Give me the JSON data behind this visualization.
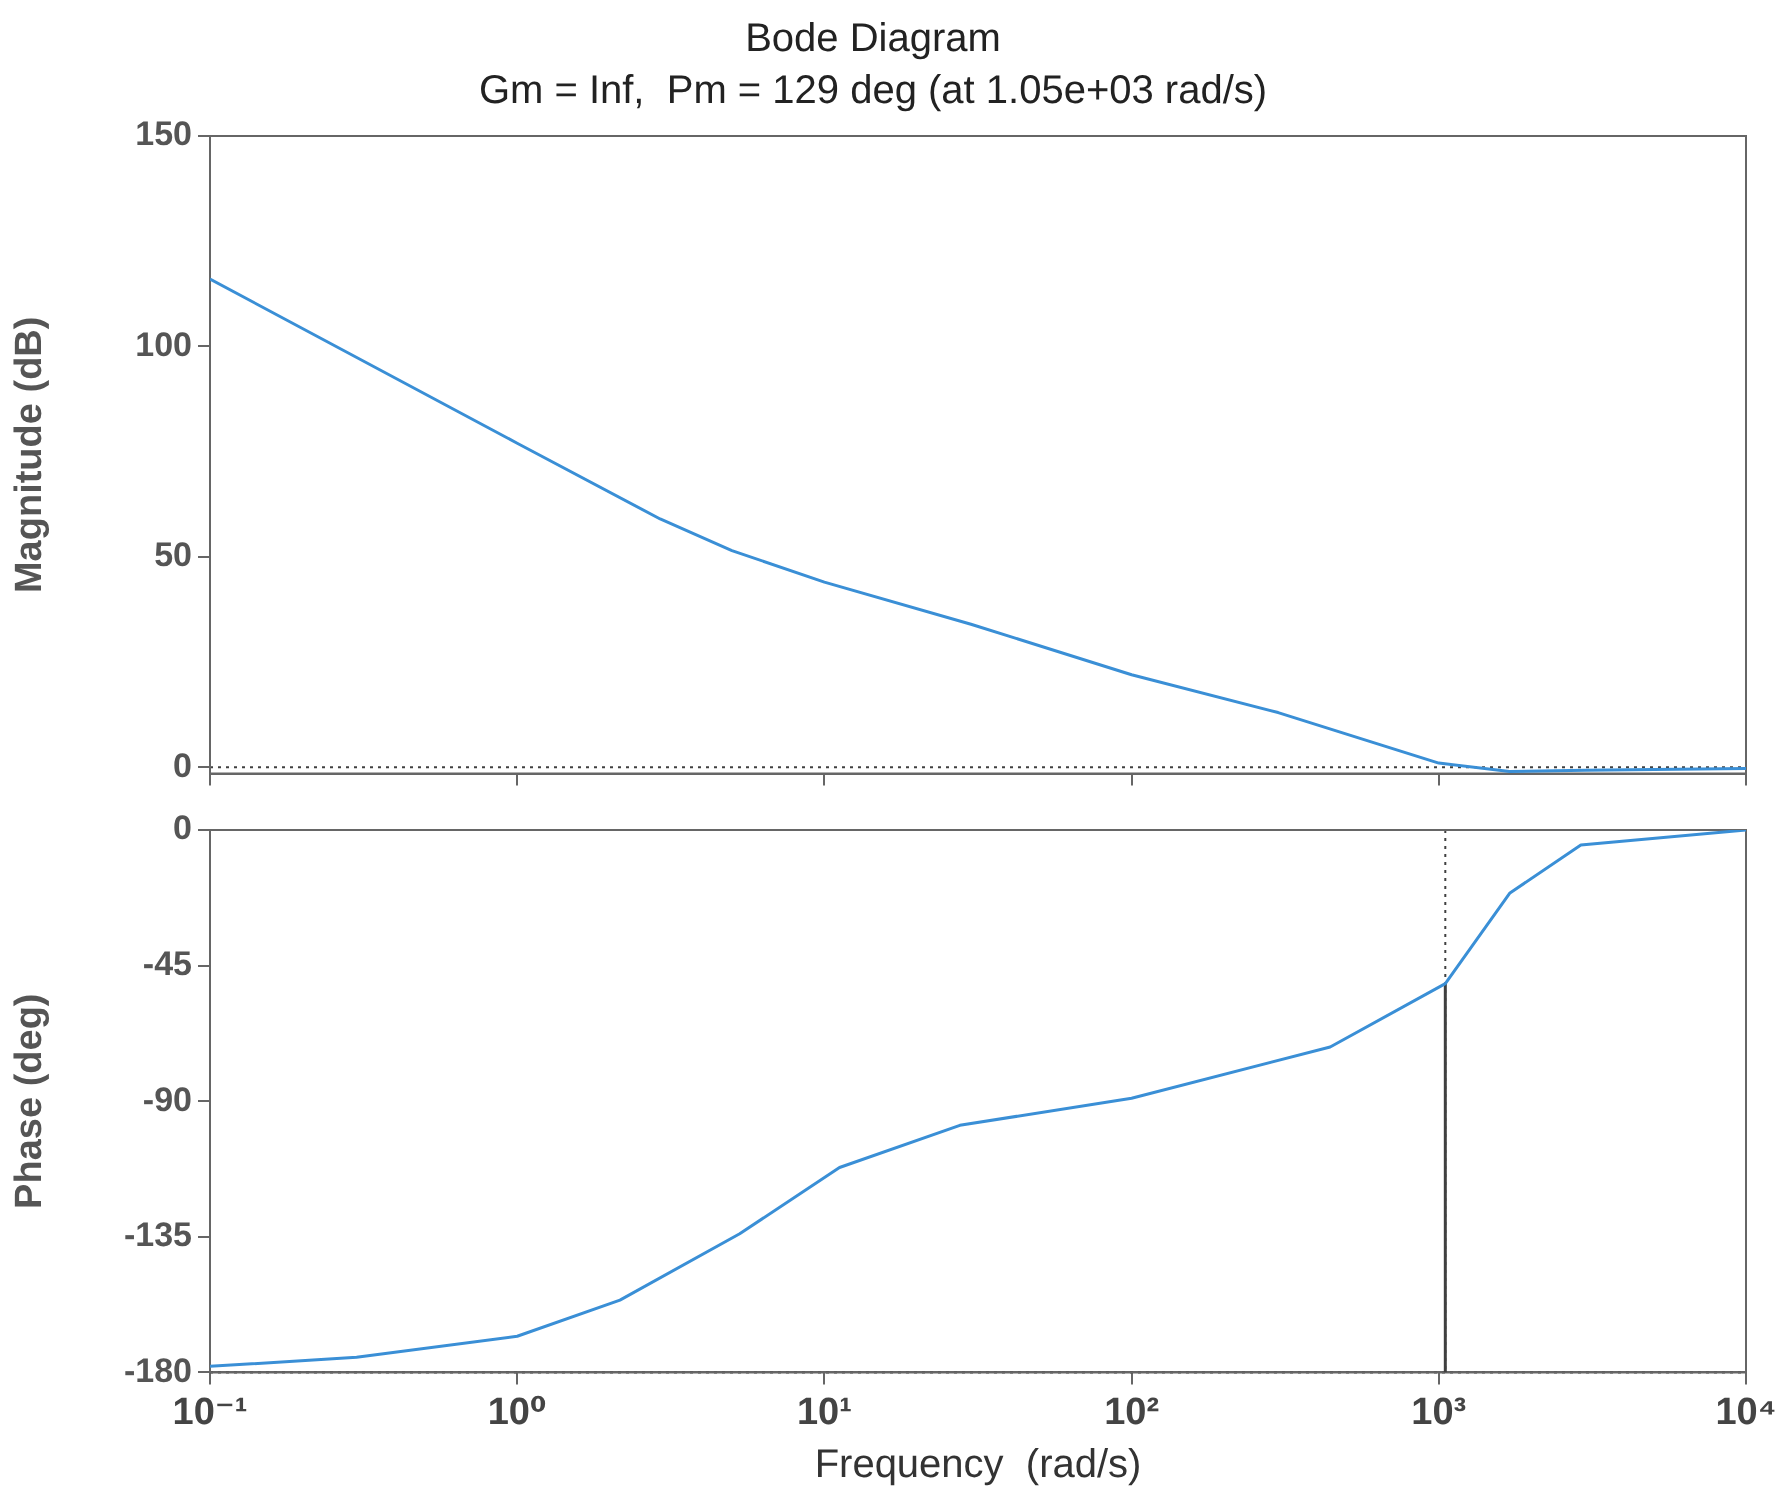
{
  "chart_data": [
    {
      "type": "line",
      "title": "Bode Diagram",
      "subtitle": "Gm = Inf,  Pm = 129 deg (at 1.05e+03 rad/s)",
      "ylabel": "Magnitude (dB)",
      "x": [
        0.1,
        1,
        2.92,
        5,
        10,
        30,
        100,
        300,
        1000,
        1700,
        3000,
        10000
      ],
      "series": [
        {
          "color": "#3a8fd6",
          "values": [
            116,
            77,
            59,
            51.5,
            44,
            34,
            22,
            13,
            1,
            -1,
            -0.7,
            -0.3
          ]
        }
      ],
      "log": "x",
      "xlim": [
        0.1,
        10000
      ],
      "xticks": [
        {
          "value": 0.1,
          "label": null
        },
        {
          "value": 1,
          "label": null
        },
        {
          "value": 10,
          "label": null
        },
        {
          "value": 100,
          "label": null
        },
        {
          "value": 1000,
          "label": null
        },
        {
          "value": 10000,
          "label": null
        }
      ],
      "ylim": [
        -1.5,
        150
      ],
      "yticks": [
        0,
        50,
        100,
        150
      ],
      "tick_labels": "y",
      "grid": false,
      "marker": "none",
      "line_style": "solid",
      "ref_lines": [
        {
          "axis": "y",
          "value": 0,
          "color": "#404040",
          "line_style": "dotted"
        }
      ]
    },
    {
      "type": "line",
      "xlabel": "Frequency  (rad/s)",
      "ylabel": "Phase (deg)",
      "x": [
        0.1,
        0.3,
        1,
        2.16,
        5.3,
        11.2,
        27.6,
        100,
        443,
        1050,
        1700,
        2900,
        10000
      ],
      "series": [
        {
          "color": "#3a8fd6",
          "values": [
            -178,
            -175,
            -168,
            -156,
            -134,
            -112,
            -98,
            -89,
            -72,
            -51,
            -21,
            -5,
            0
          ]
        },
        {
          "type": "line",
          "color": "#404040",
          "x": [
            1050,
            1050
          ],
          "values": [
            -180,
            -51
          ]
        }
      ],
      "log": "x",
      "xlim": [
        0.1,
        10000
      ],
      "xticks": [
        {
          "value": 0.1,
          "label": "10⁻¹"
        },
        {
          "value": 1,
          "label": "10⁰"
        },
        {
          "value": 10,
          "label": "10¹"
        },
        {
          "value": 100,
          "label": "10²"
        },
        {
          "value": 1000,
          "label": "10³"
        },
        {
          "value": 10000,
          "label": "10⁴"
        }
      ],
      "ylim": [
        -180,
        0
      ],
      "yticks": [
        -180,
        -135,
        -90,
        -45,
        0
      ],
      "grid": false,
      "marker": "none",
      "line_style": "solid",
      "ref_lines": [
        {
          "axis": "y",
          "value": -180,
          "color": "#404040",
          "line_style": "dotted"
        },
        {
          "axis": "x",
          "value": 1050,
          "color": "#404040",
          "line_style": "dotted"
        }
      ]
    }
  ]
}
